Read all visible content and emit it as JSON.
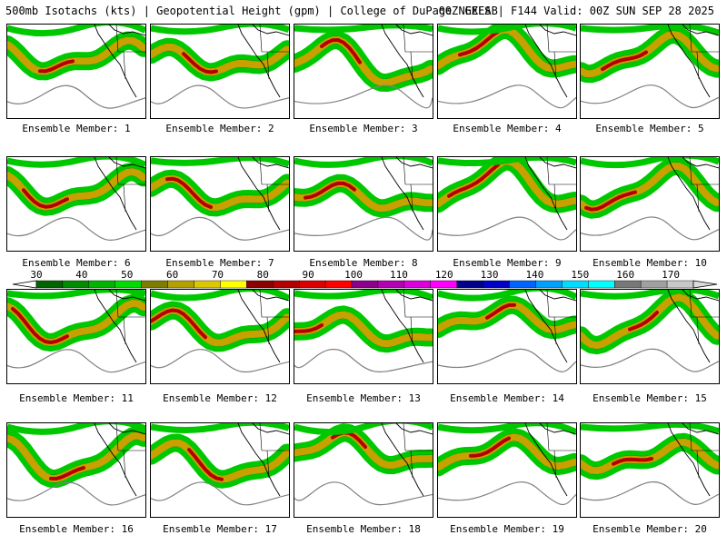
{
  "header": {
    "left": "500mb Isotachs (kts) | Geopotential Height (gpm) | College of DuPage NEXLAB",
    "right": "00Z GEFS | F144 Valid: 00Z SUN SEP 28 2025"
  },
  "panels": [
    {
      "caption": "Ensemble Member: 1"
    },
    {
      "caption": "Ensemble Member: 2"
    },
    {
      "caption": "Ensemble Member: 3"
    },
    {
      "caption": "Ensemble Member: 4"
    },
    {
      "caption": "Ensemble Member: 5"
    },
    {
      "caption": "Ensemble Member: 6"
    },
    {
      "caption": "Ensemble Member: 7"
    },
    {
      "caption": "Ensemble Member: 8"
    },
    {
      "caption": "Ensemble Member: 9"
    },
    {
      "caption": "Ensemble Member: 10"
    },
    {
      "caption": "Ensemble Member: 11"
    },
    {
      "caption": "Ensemble Member: 12"
    },
    {
      "caption": "Ensemble Member: 13"
    },
    {
      "caption": "Ensemble Member: 14"
    },
    {
      "caption": "Ensemble Member: 15"
    },
    {
      "caption": "Ensemble Member: 16"
    },
    {
      "caption": "Ensemble Member: 17"
    },
    {
      "caption": "Ensemble Member: 18"
    },
    {
      "caption": "Ensemble Member: 19"
    },
    {
      "caption": "Ensemble Member: 20"
    }
  ],
  "colorbar": {
    "labels": [
      "30",
      "40",
      "50",
      "60",
      "70",
      "80",
      "90",
      "100",
      "110",
      "120",
      "130",
      "140",
      "150",
      "160",
      "170"
    ],
    "colors": [
      "#006400",
      "#008c00",
      "#00b400",
      "#00dc00",
      "#7d7d00",
      "#b4a000",
      "#dcc800",
      "#ffff00",
      "#8c0000",
      "#b40000",
      "#dc0000",
      "#ff0000",
      "#8c008c",
      "#b400b4",
      "#dc00dc",
      "#ff00ff",
      "#00008c",
      "#0000c8",
      "#0064ff",
      "#00a0ff",
      "#00dcff",
      "#00ffff",
      "#787878",
      "#a0a0a0",
      "#c8c8c8"
    ]
  },
  "colors": {
    "isotach_low": "#00c800",
    "isotach_mid": "#c8a000",
    "isotach_high": "#b40000",
    "height_contour": "#808080",
    "coastline": "#000000"
  }
}
